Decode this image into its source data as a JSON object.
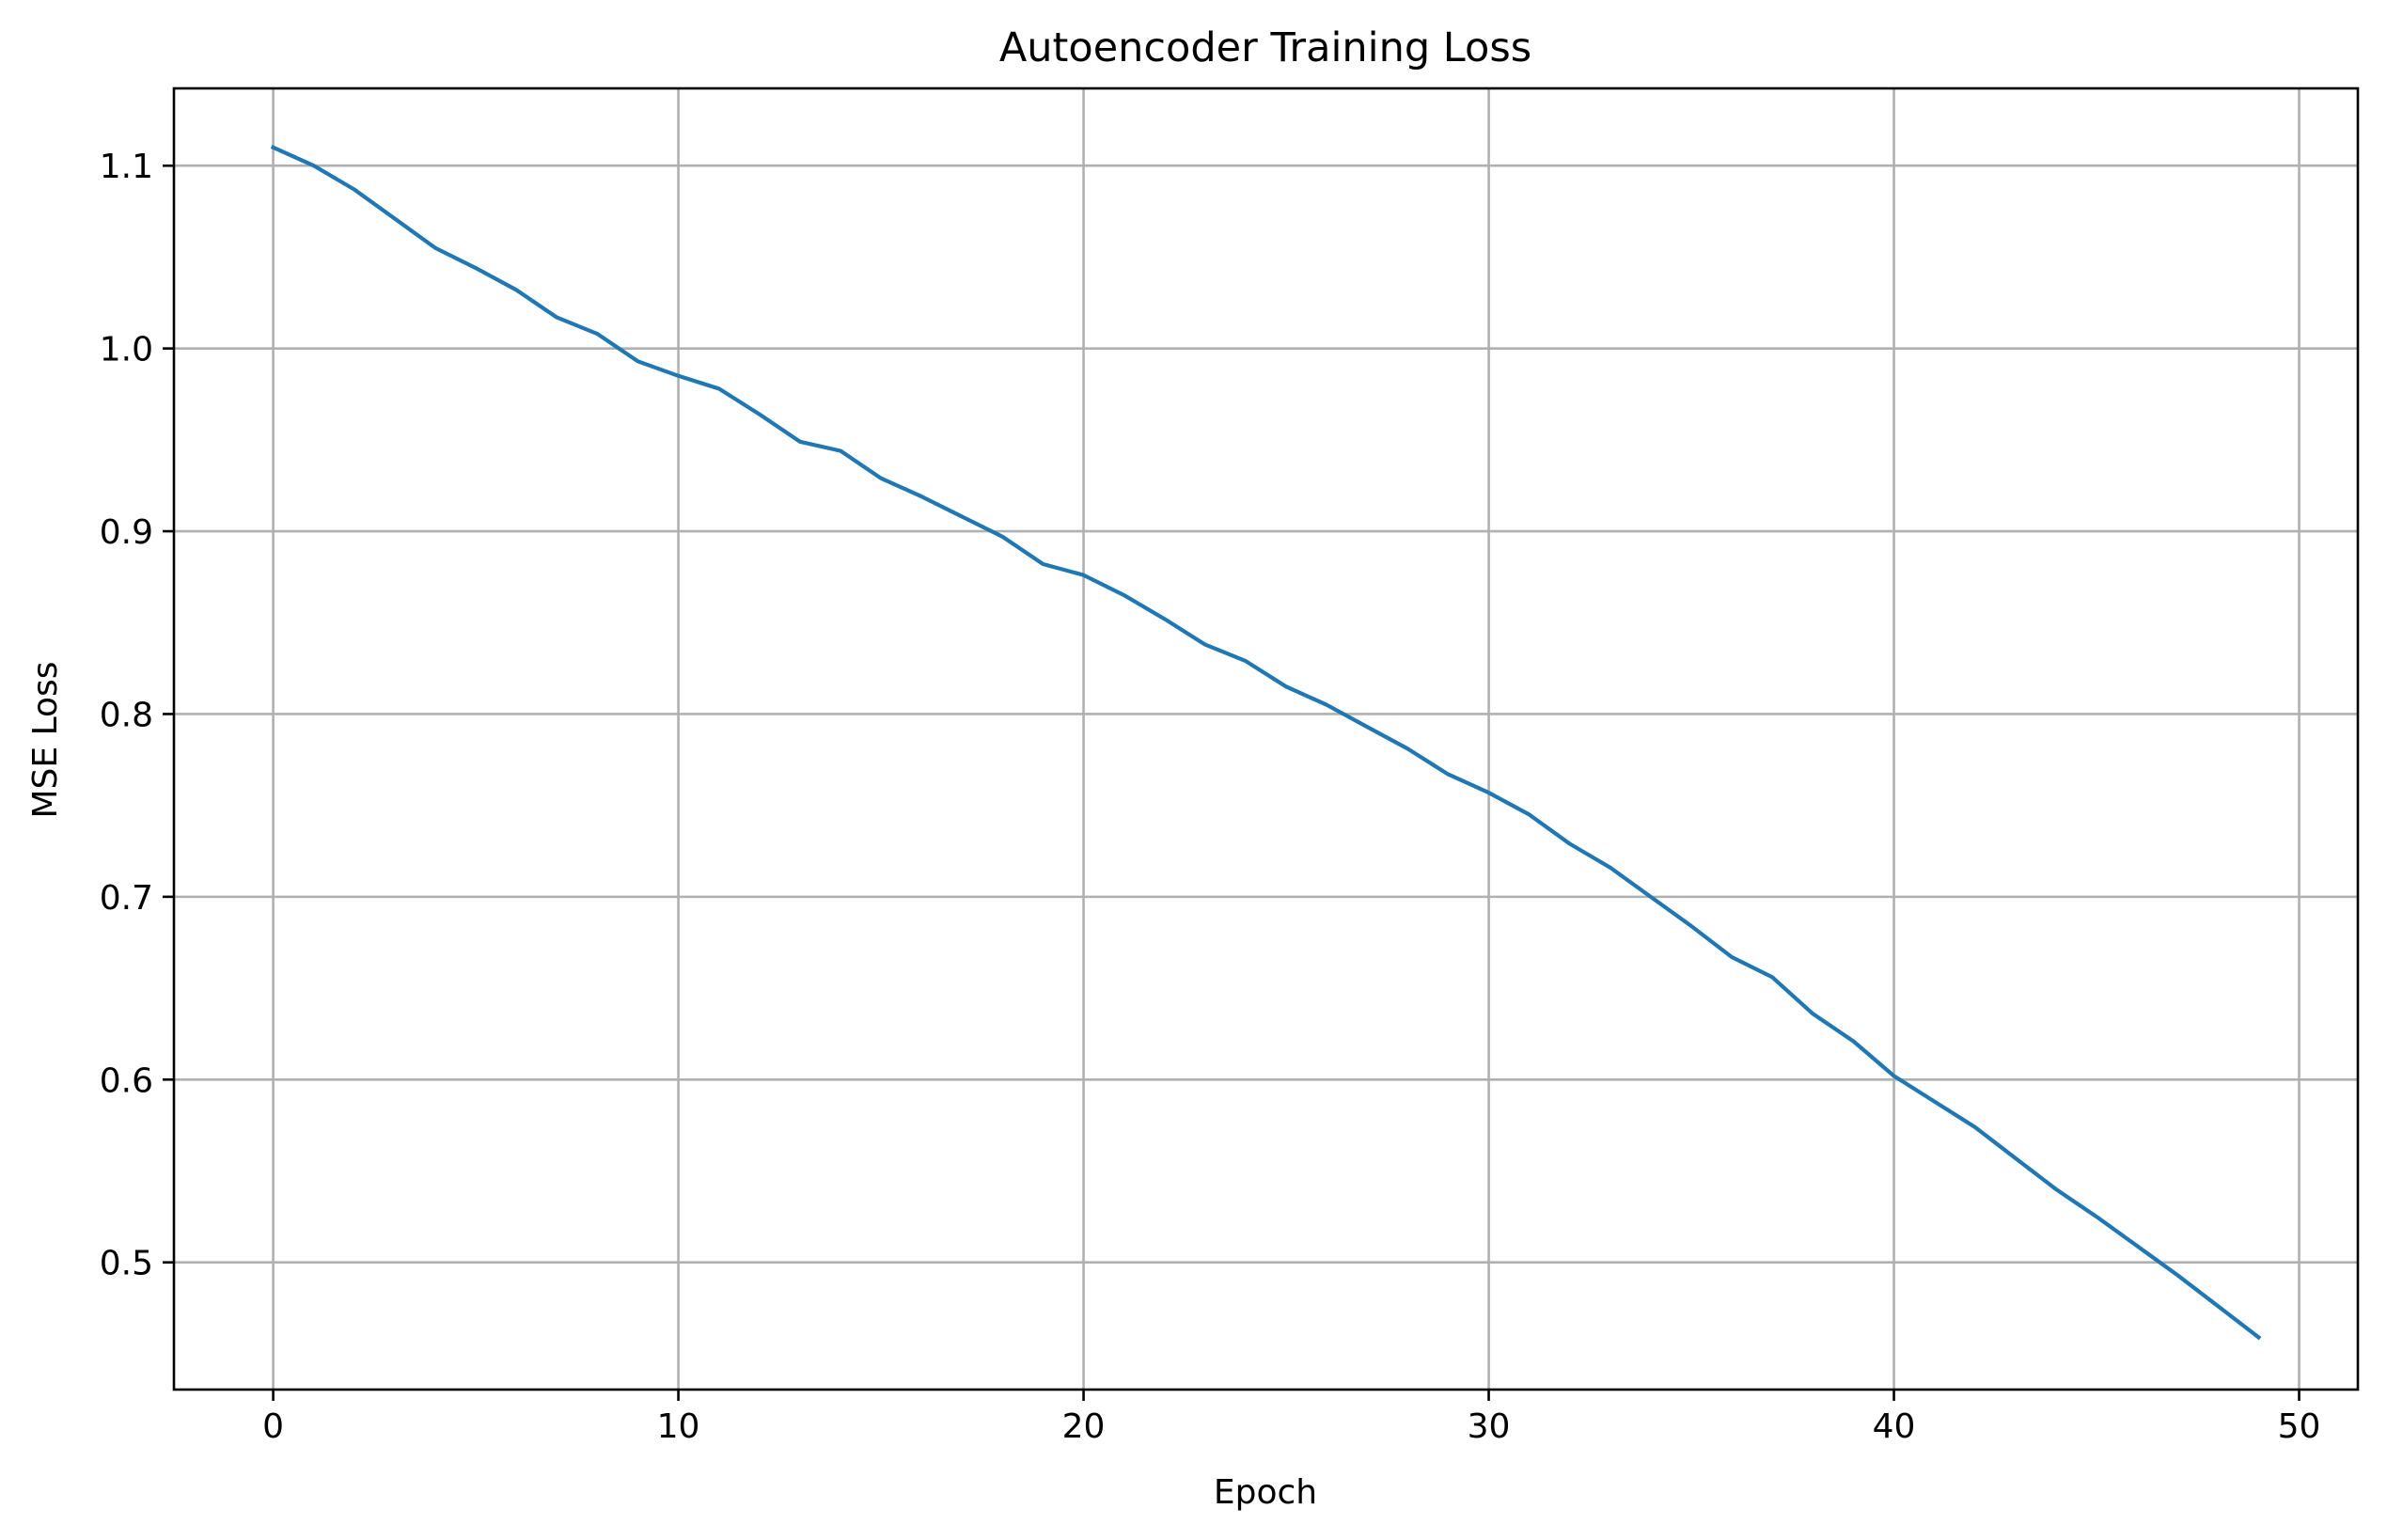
{
  "chart_data": {
    "type": "line",
    "title": "Autoencoder Training Loss",
    "xlabel": "Epoch",
    "ylabel": "MSE Loss",
    "xlim": [
      -2.45,
      51.45
    ],
    "ylim": [
      0.4304,
      1.1423
    ],
    "xticks": [
      0,
      10,
      20,
      30,
      40,
      50
    ],
    "xtick_labels": [
      "0",
      "10",
      "20",
      "30",
      "40",
      "50"
    ],
    "yticks": [
      0.5,
      0.6,
      0.7,
      0.8,
      0.9,
      1.0,
      1.1
    ],
    "ytick_labels": [
      "0.5",
      "0.6",
      "0.7",
      "0.8",
      "0.9",
      "1.0",
      "1.1"
    ],
    "grid": true,
    "series": [
      {
        "color": "#1f77b4",
        "x": [
          0,
          1,
          2,
          3,
          4,
          5,
          6,
          7,
          8,
          9,
          10,
          11,
          12,
          13,
          14,
          15,
          16,
          17,
          18,
          19,
          20,
          21,
          22,
          23,
          24,
          25,
          26,
          27,
          28,
          29,
          30,
          31,
          32,
          33,
          34,
          35,
          36,
          37,
          38,
          39,
          40,
          41,
          42,
          43,
          44,
          45,
          46,
          47,
          48,
          49
        ],
        "y": [
          1.11,
          1.1,
          1.087,
          1.071,
          1.055,
          1.044,
          1.032,
          1.017,
          1.008,
          0.993,
          0.985,
          0.978,
          0.964,
          0.949,
          0.944,
          0.929,
          0.919,
          0.908,
          0.897,
          0.882,
          0.876,
          0.865,
          0.852,
          0.838,
          0.829,
          0.815,
          0.805,
          0.793,
          0.781,
          0.767,
          0.757,
          0.745,
          0.729,
          0.716,
          0.7,
          0.684,
          0.667,
          0.656,
          0.636,
          0.621,
          0.602,
          0.588,
          0.574,
          0.557,
          0.54,
          0.525,
          0.509,
          0.493,
          0.476,
          0.459
        ]
      }
    ]
  }
}
